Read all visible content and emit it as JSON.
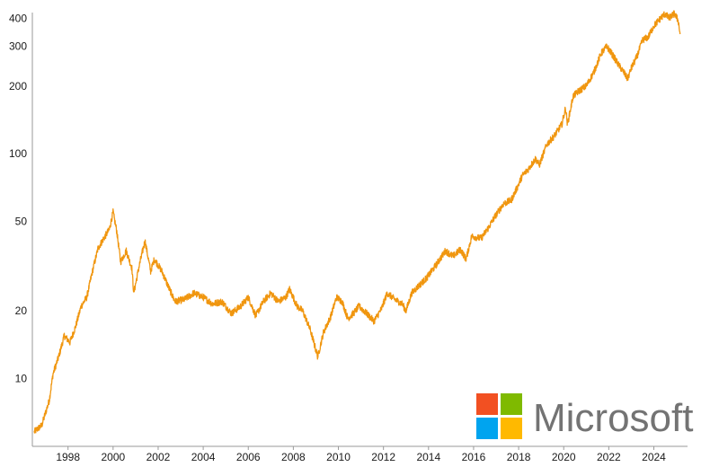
{
  "chart_data": {
    "type": "line",
    "y_scale": "log",
    "ylim": [
      5,
      440
    ],
    "xlim": [
      "1996-06-01",
      "2025-06-30"
    ],
    "x_tick_labels": [
      "1998",
      "2000",
      "2002",
      "2004",
      "2006",
      "2008",
      "2010",
      "2012",
      "2014",
      "2016",
      "2018",
      "2020",
      "2022",
      "2024"
    ],
    "y_tick_labels": [
      "10",
      "20",
      "50",
      "100",
      "200",
      "300",
      "400"
    ],
    "y_tick_values": [
      10,
      20,
      50,
      100,
      200,
      300,
      400
    ],
    "grid": false,
    "title": "",
    "xlabel": "",
    "ylabel": "",
    "series": [
      {
        "color": "#f0960f",
        "points": [
          [
            "1996-07",
            5.8
          ],
          [
            "1996-11",
            6.2
          ],
          [
            "1997-03",
            8.0
          ],
          [
            "1997-05",
            10.5
          ],
          [
            "1997-08",
            12.5
          ],
          [
            "1997-11",
            15.5
          ],
          [
            "1998-02",
            14.5
          ],
          [
            "1998-05",
            17.0
          ],
          [
            "1998-08",
            21.0
          ],
          [
            "1998-11",
            23.0
          ],
          [
            "1999-02",
            30.0
          ],
          [
            "1999-05",
            38.0
          ],
          [
            "1999-08",
            42.0
          ],
          [
            "1999-11",
            46.0
          ],
          [
            "2000-01",
            55.0
          ],
          [
            "2000-03",
            45.0
          ],
          [
            "2000-05",
            33.0
          ],
          [
            "2000-08",
            37.0
          ],
          [
            "2000-11",
            31.0
          ],
          [
            "2000-12",
            24.0
          ],
          [
            "2001-03",
            32.0
          ],
          [
            "2001-06",
            41.0
          ],
          [
            "2001-09",
            30.0
          ],
          [
            "2001-11",
            34.0
          ],
          [
            "2002-03",
            30.0
          ],
          [
            "2002-07",
            25.0
          ],
          [
            "2002-10",
            22.0
          ],
          [
            "2003-03",
            22.5
          ],
          [
            "2003-08",
            24.0
          ],
          [
            "2004-01",
            23.0
          ],
          [
            "2004-06",
            21.5
          ],
          [
            "2004-11",
            22.0
          ],
          [
            "2005-04",
            19.5
          ],
          [
            "2005-09",
            21.0
          ],
          [
            "2006-01",
            23.0
          ],
          [
            "2006-05",
            19.0
          ],
          [
            "2006-09",
            22.0
          ],
          [
            "2007-01",
            24.0
          ],
          [
            "2007-05",
            22.0
          ],
          [
            "2007-09",
            23.0
          ],
          [
            "2007-11",
            25.0
          ],
          [
            "2008-03",
            21.0
          ],
          [
            "2008-06",
            20.0
          ],
          [
            "2008-10",
            16.5
          ],
          [
            "2009-02",
            12.5
          ],
          [
            "2009-05",
            16.0
          ],
          [
            "2009-09",
            19.0
          ],
          [
            "2009-12",
            23.0
          ],
          [
            "2010-03",
            22.0
          ],
          [
            "2010-06",
            18.5
          ],
          [
            "2010-09",
            19.5
          ],
          [
            "2010-12",
            21.0
          ],
          [
            "2011-04",
            19.5
          ],
          [
            "2011-08",
            18.0
          ],
          [
            "2011-12",
            20.5
          ],
          [
            "2012-03",
            24.0
          ],
          [
            "2012-07",
            22.5
          ],
          [
            "2012-11",
            21.5
          ],
          [
            "2013-01",
            20.0
          ],
          [
            "2013-04",
            24.0
          ],
          [
            "2013-08",
            26.0
          ],
          [
            "2013-12",
            28.0
          ],
          [
            "2014-05",
            32.0
          ],
          [
            "2014-10",
            37.0
          ],
          [
            "2015-02",
            35.0
          ],
          [
            "2015-06",
            37.5
          ],
          [
            "2015-09",
            34.0
          ],
          [
            "2015-12",
            43.0
          ],
          [
            "2016-05",
            42.0
          ],
          [
            "2016-09",
            47.0
          ],
          [
            "2016-12",
            52.0
          ],
          [
            "2017-05",
            60.0
          ],
          [
            "2017-09",
            62.0
          ],
          [
            "2017-12",
            70.0
          ],
          [
            "2018-03",
            80.0
          ],
          [
            "2018-06",
            85.0
          ],
          [
            "2018-10",
            95.0
          ],
          [
            "2018-12",
            89.0
          ],
          [
            "2019-04",
            110.0
          ],
          [
            "2019-08",
            120.0
          ],
          [
            "2019-12",
            135.0
          ],
          [
            "2020-02",
            160.0
          ],
          [
            "2020-03",
            135.0
          ],
          [
            "2020-06",
            180.0
          ],
          [
            "2020-09",
            190.0
          ],
          [
            "2021-01",
            200.0
          ],
          [
            "2021-05",
            230.0
          ],
          [
            "2021-09",
            280.0
          ],
          [
            "2021-12",
            300.0
          ],
          [
            "2022-03",
            275.0
          ],
          [
            "2022-06",
            250.0
          ],
          [
            "2022-09",
            230.0
          ],
          [
            "2022-11",
            215.0
          ],
          [
            "2023-01",
            240.0
          ],
          [
            "2023-04",
            270.0
          ],
          [
            "2023-07",
            320.0
          ],
          [
            "2023-10",
            330.0
          ],
          [
            "2024-01",
            370.0
          ],
          [
            "2024-04",
            395.0
          ],
          [
            "2024-07",
            420.0
          ],
          [
            "2024-09",
            400.0
          ],
          [
            "2024-12",
            420.0
          ],
          [
            "2025-02",
            390.0
          ],
          [
            "2025-03",
            340.0
          ]
        ]
      }
    ]
  },
  "logo": {
    "text": "Microsoft",
    "colors": [
      "#f25022",
      "#7fba00",
      "#00a4ef",
      "#ffb900"
    ],
    "text_color": "#737373"
  }
}
